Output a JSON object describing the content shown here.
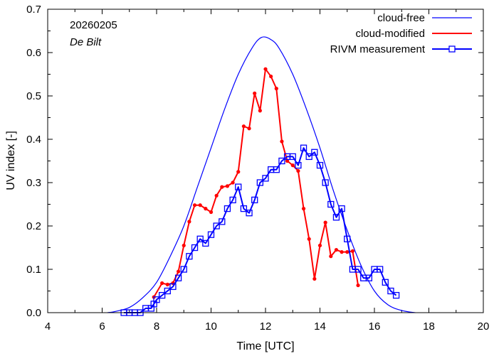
{
  "chart_data": {
    "type": "line",
    "title": "",
    "xlabel": "Time  [UTC]",
    "ylabel": "UV index  [-]",
    "xlim": [
      4,
      20
    ],
    "ylim": [
      0,
      0.7
    ],
    "xticks": [
      4,
      6,
      8,
      10,
      12,
      14,
      16,
      18,
      20
    ],
    "yticks": [
      0.0,
      0.1,
      0.2,
      0.3,
      0.4,
      0.5,
      0.6,
      0.7
    ],
    "xtick_labels": [
      "4",
      "6",
      "8",
      "10",
      "12",
      "14",
      "16",
      "18",
      "20"
    ],
    "ytick_labels": [
      "0.0",
      "0.1",
      "0.2",
      "0.3",
      "0.4",
      "0.5",
      "0.6",
      "0.7"
    ],
    "annotations": {
      "date": "20260205",
      "location": "De Bilt"
    },
    "legend_position": "top-right",
    "series": [
      {
        "name": "cloud-free",
        "color": "#0000ff",
        "style": "line",
        "x": [
          6.2,
          6.5,
          7.0,
          7.5,
          8.0,
          8.5,
          9.0,
          9.5,
          10.0,
          10.5,
          11.0,
          11.5,
          11.85,
          12.2,
          12.5,
          13.0,
          13.5,
          14.0,
          14.5,
          15.0,
          15.5,
          16.0,
          16.5,
          17.0,
          17.5
        ],
        "y": [
          0.0,
          0.003,
          0.012,
          0.035,
          0.07,
          0.13,
          0.2,
          0.29,
          0.38,
          0.47,
          0.55,
          0.61,
          0.635,
          0.63,
          0.61,
          0.55,
          0.47,
          0.38,
          0.28,
          0.19,
          0.11,
          0.05,
          0.018,
          0.005,
          0.0
        ]
      },
      {
        "name": "cloud-modified",
        "color": "#ff0000",
        "style": "line-dots",
        "x": [
          7.9,
          8.2,
          8.4,
          8.6,
          8.8,
          9.0,
          9.2,
          9.4,
          9.6,
          9.8,
          10.0,
          10.2,
          10.4,
          10.6,
          10.8,
          11.0,
          11.2,
          11.4,
          11.6,
          11.8,
          12.0,
          12.2,
          12.4,
          12.6,
          12.8,
          13.0,
          13.2,
          13.4,
          13.6,
          13.8,
          14.0,
          14.2,
          14.4,
          14.6,
          14.8,
          15.0,
          15.2,
          15.4
        ],
        "y": [
          0.036,
          0.068,
          0.065,
          0.068,
          0.095,
          0.155,
          0.21,
          0.248,
          0.248,
          0.24,
          0.232,
          0.27,
          0.29,
          0.292,
          0.3,
          0.325,
          0.43,
          0.425,
          0.506,
          0.466,
          0.562,
          0.545,
          0.517,
          0.395,
          0.35,
          0.34,
          0.327,
          0.24,
          0.17,
          0.078,
          0.155,
          0.208,
          0.13,
          0.145,
          0.14,
          0.14,
          0.142,
          0.063
        ]
      },
      {
        "name": "RIVM measurement",
        "color": "#0000ff",
        "style": "line-squares",
        "x": [
          6.8,
          7.0,
          7.2,
          7.4,
          7.6,
          7.8,
          7.9,
          8.0,
          8.2,
          8.4,
          8.6,
          8.8,
          9.0,
          9.2,
          9.4,
          9.6,
          9.8,
          10.0,
          10.2,
          10.4,
          10.6,
          10.8,
          11.0,
          11.2,
          11.4,
          11.6,
          11.8,
          12.0,
          12.2,
          12.4,
          12.6,
          12.8,
          13.0,
          13.2,
          13.4,
          13.6,
          13.8,
          14.0,
          14.2,
          14.4,
          14.6,
          14.8,
          15.0,
          15.2,
          15.4,
          15.6,
          15.8,
          16.0,
          16.2,
          16.4,
          16.6,
          16.8
        ],
        "y": [
          0.0,
          0.0,
          0.0,
          0.0,
          0.01,
          0.01,
          0.02,
          0.03,
          0.04,
          0.05,
          0.06,
          0.08,
          0.1,
          0.13,
          0.15,
          0.17,
          0.16,
          0.18,
          0.2,
          0.21,
          0.24,
          0.26,
          0.29,
          0.24,
          0.23,
          0.26,
          0.3,
          0.31,
          0.33,
          0.33,
          0.35,
          0.36,
          0.36,
          0.34,
          0.38,
          0.36,
          0.37,
          0.34,
          0.3,
          0.25,
          0.22,
          0.24,
          0.17,
          0.1,
          0.1,
          0.08,
          0.08,
          0.1,
          0.1,
          0.07,
          0.05,
          0.04
        ]
      }
    ]
  }
}
